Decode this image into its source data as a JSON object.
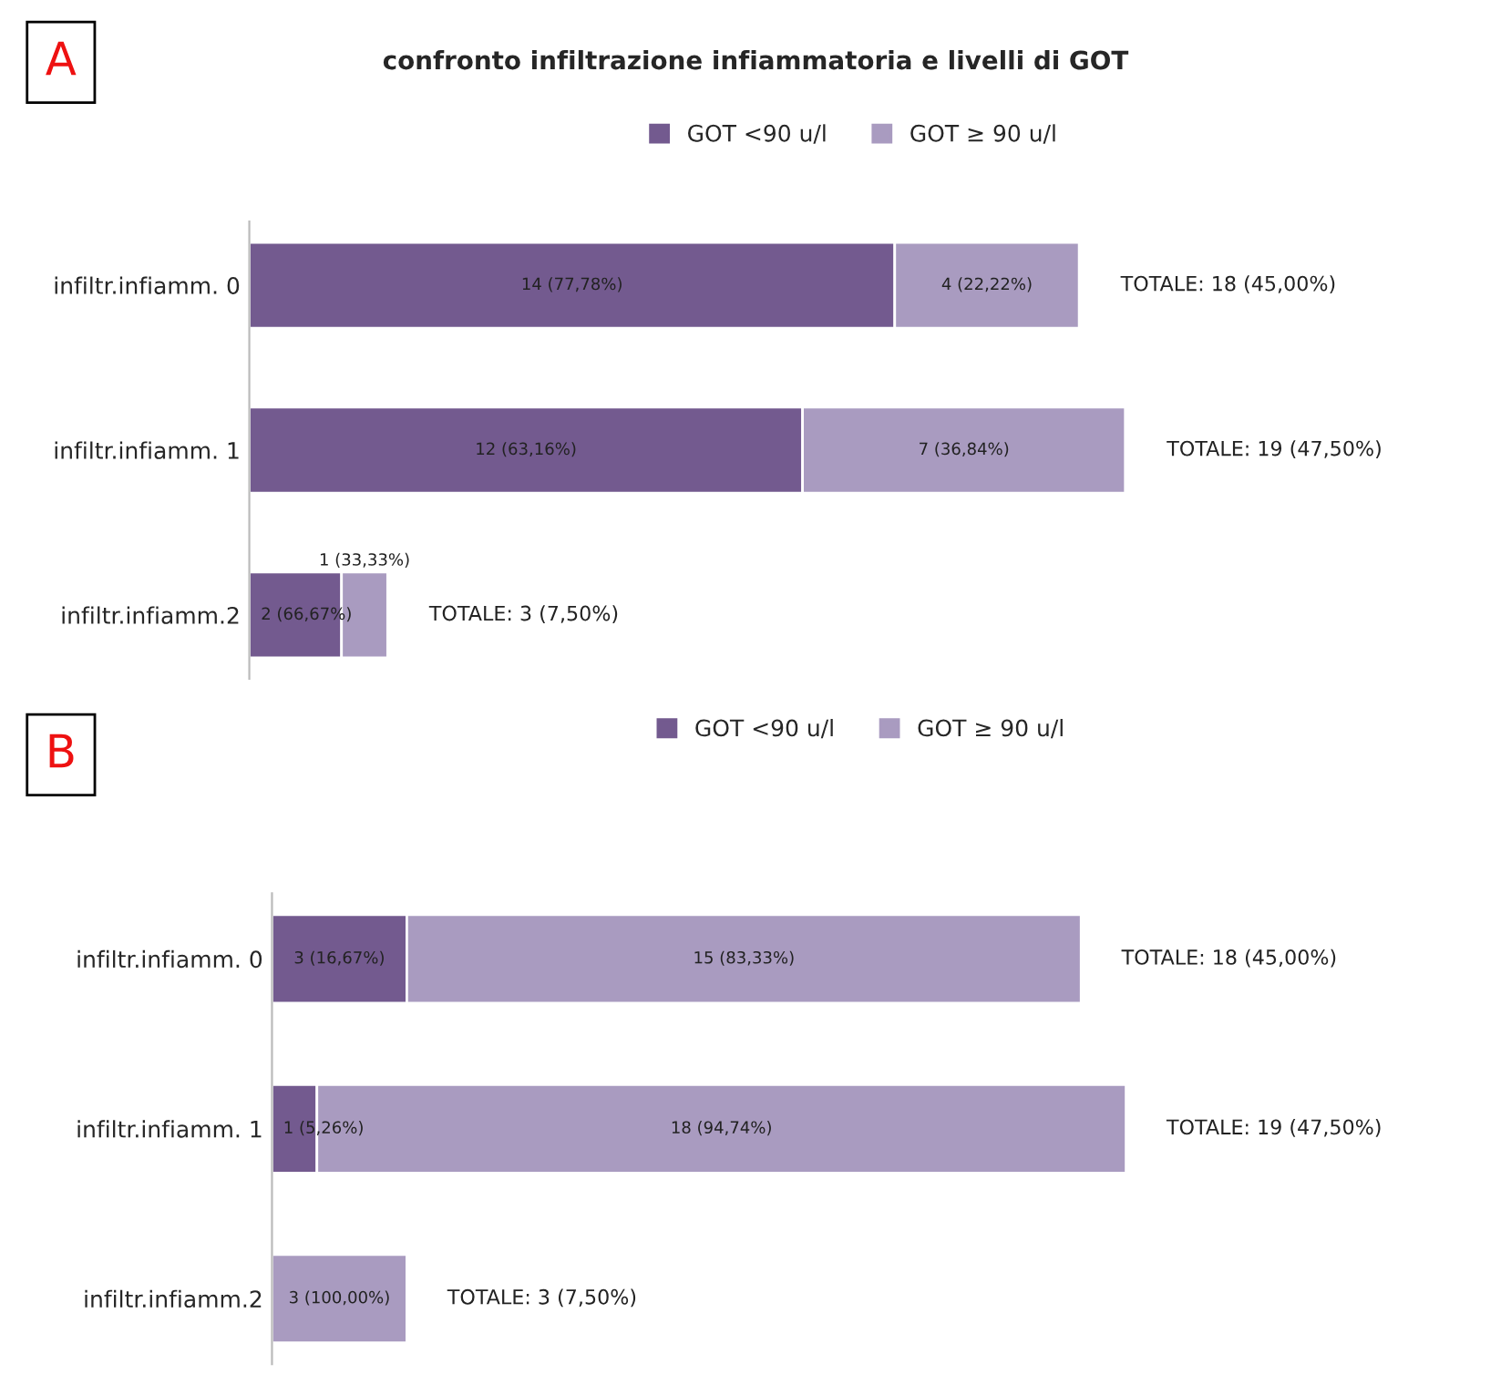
{
  "chart_data": [
    {
      "type": "bar",
      "orientation": "horizontal",
      "stacked": true,
      "title": "confronto infiltrazione infiammatoria e livelli di GOT",
      "annotations": [
        "A"
      ],
      "categories": [
        "infiltr.infiamm. 0",
        "infiltr.infiamm. 1",
        "infiltr.infiamm.2"
      ],
      "tick_labels": "y",
      "legend": "top",
      "grid": false,
      "series": [
        {
          "name": "GOT <90 u/l",
          "color": "#735a8f",
          "values": [
            14,
            12,
            2
          ],
          "value_labels": [
            "14 (77,78%)",
            "12 (63,16%)",
            "2 (66,67%)"
          ]
        },
        {
          "name": "GOT ≥ 90 u/l",
          "color": "#a99bc0",
          "values": [
            4,
            7,
            1
          ],
          "value_labels": [
            "4 (22,22%)",
            "7 (36,84%)",
            "1 (33,33%)"
          ]
        }
      ],
      "totals": [
        "TOTALE: 18 (45,00%)",
        "TOTALE: 19 (47,50%)",
        "TOTALE: 3 (7,50%)"
      ]
    },
    {
      "type": "bar",
      "orientation": "horizontal",
      "stacked": true,
      "annotations": [
        "B"
      ],
      "categories": [
        "infiltr.infiamm. 0",
        "infiltr.infiamm. 1",
        "infiltr.infiamm.2"
      ],
      "tick_labels": "y",
      "legend": "top",
      "grid": false,
      "series": [
        {
          "name": "GOT <90 u/l",
          "color": "#735a8f",
          "values": [
            3,
            1,
            0
          ],
          "value_labels": [
            "3 (16,67%)",
            "1 (5,26%)",
            null
          ]
        },
        {
          "name": "GOT ≥ 90 u/l",
          "color": "#a99bc0",
          "values": [
            15,
            18,
            3
          ],
          "value_labels": [
            "15 (83,33%)",
            "18 (94,74%)",
            "3 (100,00%)"
          ]
        }
      ],
      "totals": [
        "TOTALE: 18 (45,00%)",
        "TOTALE: 19 (47,50%)",
        "TOTALE: 3 (7,50%)"
      ]
    }
  ]
}
